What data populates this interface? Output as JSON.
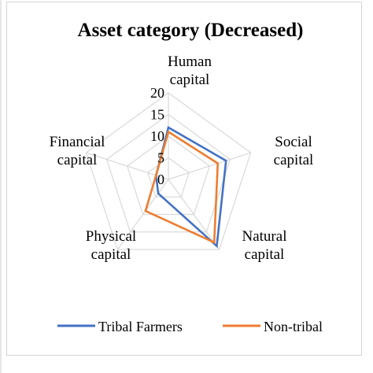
{
  "chart_data": {
    "type": "radar",
    "title": "Asset category (Decreased)",
    "categories": [
      "Human capital",
      "Social capital",
      "Natural capital",
      "Physical capital",
      "Financial capital"
    ],
    "category_lines": [
      [
        "Human",
        "capital"
      ],
      [
        "Social",
        "capital"
      ],
      [
        "Natural",
        "capital"
      ],
      [
        "Physical",
        "capital"
      ],
      [
        "Financial",
        "capital"
      ]
    ],
    "rlim": [
      0,
      20
    ],
    "ticks": [
      "0",
      "5",
      "10",
      "15",
      "20"
    ],
    "tick_values": [
      0,
      5,
      10,
      15,
      20
    ],
    "grid": true,
    "legend_position": "bottom",
    "series": [
      {
        "name": "Tribal Farmers",
        "color": "#4472C4",
        "values": [
          12,
          14,
          19,
          4,
          3
        ]
      },
      {
        "name": "Non-tribal",
        "color": "#ED7D31",
        "values": [
          11,
          12,
          18,
          9,
          3
        ]
      }
    ]
  }
}
